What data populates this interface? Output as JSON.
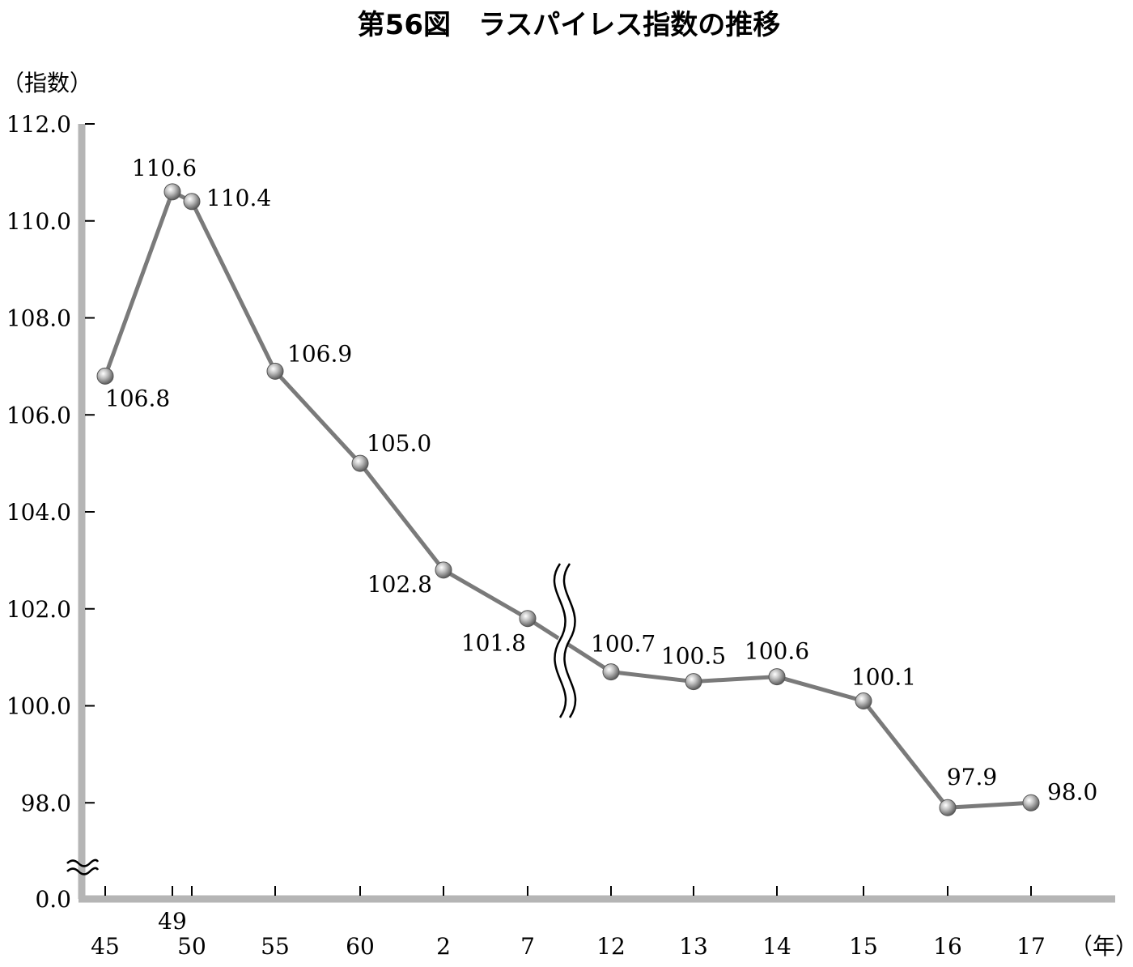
{
  "chart_data": {
    "type": "line",
    "title": "第56図　ラスパイレス指数の推移",
    "ylabel": "（指数）",
    "xlabel": "（年）",
    "y_tick_labels": [
      "0.0",
      "98.0",
      "100.0",
      "102.0",
      "104.0",
      "106.0",
      "108.0",
      "110.0",
      "112.0"
    ],
    "y_ticks": [
      98,
      100,
      102,
      104,
      106,
      108,
      110,
      112
    ],
    "y_zero_label": "0.0",
    "ylim": [
      97,
      112
    ],
    "y_axis_break": true,
    "x_axis_break_between": [
      "7",
      "12"
    ],
    "grid": false,
    "categories": [
      "45",
      "49",
      "50",
      "55",
      "60",
      "2",
      "7",
      "12",
      "13",
      "14",
      "15",
      "16",
      "17"
    ],
    "values": [
      106.8,
      110.6,
      110.4,
      106.9,
      105.0,
      102.8,
      101.8,
      100.7,
      100.5,
      100.6,
      100.1,
      97.9,
      98.0
    ],
    "data_labels": [
      "106.8",
      "110.6",
      "110.4",
      "106.9",
      "105.0",
      "102.8",
      "101.8",
      "100.7",
      "100.5",
      "100.6",
      "100.1",
      "97.9",
      "98.0"
    ],
    "colors": {
      "line": "#7a7a7a",
      "axis": "#b5b5b5",
      "marker": "#9a9a9a"
    }
  }
}
